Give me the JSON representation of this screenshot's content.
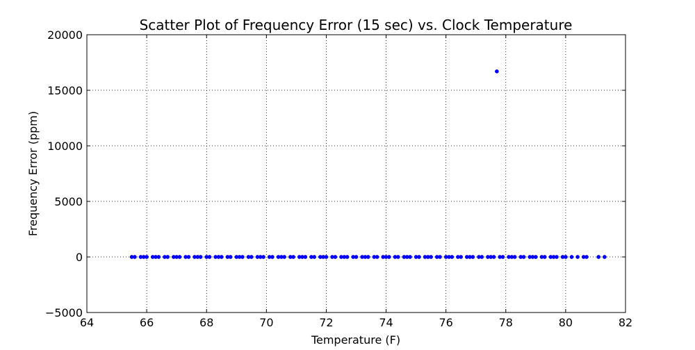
{
  "chart_data": {
    "type": "scatter",
    "title": "Scatter Plot of Frequency Error (15 sec) vs. Clock Temperature",
    "xlabel": "Temperature (F)",
    "ylabel": "Frequency Error (ppm)",
    "xlim": [
      64,
      82
    ],
    "ylim": [
      -5000,
      20000
    ],
    "xticks": [
      64,
      66,
      68,
      70,
      72,
      74,
      76,
      78,
      80,
      82
    ],
    "xtick_labels": [
      "64",
      "66",
      "68",
      "70",
      "72",
      "74",
      "76",
      "78",
      "80",
      "82"
    ],
    "yticks": [
      -5000,
      0,
      5000,
      10000,
      15000,
      20000
    ],
    "ytick_labels": [
      "−5000",
      "0",
      "5000",
      "10000",
      "15000",
      "20000"
    ],
    "grid": true,
    "marker_color": "#0000ff",
    "series": [
      {
        "points": [
          [
            65.5,
            0
          ],
          [
            65.6,
            0
          ],
          [
            65.8,
            0
          ],
          [
            65.9,
            0
          ],
          [
            66.0,
            0
          ],
          [
            66.2,
            0
          ],
          [
            66.3,
            0
          ],
          [
            66.4,
            0
          ],
          [
            66.6,
            0
          ],
          [
            66.7,
            0
          ],
          [
            66.9,
            0
          ],
          [
            67.0,
            0
          ],
          [
            67.1,
            0
          ],
          [
            67.3,
            0
          ],
          [
            67.4,
            0
          ],
          [
            67.6,
            0
          ],
          [
            67.7,
            0
          ],
          [
            67.8,
            0
          ],
          [
            68.0,
            0
          ],
          [
            68.1,
            0
          ],
          [
            68.3,
            0
          ],
          [
            68.4,
            0
          ],
          [
            68.5,
            0
          ],
          [
            68.7,
            0
          ],
          [
            68.8,
            0
          ],
          [
            69.0,
            0
          ],
          [
            69.1,
            0
          ],
          [
            69.2,
            0
          ],
          [
            69.4,
            0
          ],
          [
            69.5,
            0
          ],
          [
            69.7,
            0
          ],
          [
            69.8,
            0
          ],
          [
            69.9,
            0
          ],
          [
            70.1,
            0
          ],
          [
            70.2,
            0
          ],
          [
            70.4,
            0
          ],
          [
            70.5,
            0
          ],
          [
            70.6,
            0
          ],
          [
            70.8,
            0
          ],
          [
            70.9,
            0
          ],
          [
            71.1,
            0
          ],
          [
            71.2,
            0
          ],
          [
            71.3,
            0
          ],
          [
            71.5,
            0
          ],
          [
            71.6,
            0
          ],
          [
            71.8,
            0
          ],
          [
            71.9,
            0
          ],
          [
            72.0,
            0
          ],
          [
            72.2,
            0
          ],
          [
            72.3,
            0
          ],
          [
            72.5,
            0
          ],
          [
            72.6,
            0
          ],
          [
            72.7,
            0
          ],
          [
            72.9,
            0
          ],
          [
            73.0,
            0
          ],
          [
            73.2,
            0
          ],
          [
            73.3,
            0
          ],
          [
            73.4,
            0
          ],
          [
            73.6,
            0
          ],
          [
            73.7,
            0
          ],
          [
            73.9,
            0
          ],
          [
            74.0,
            0
          ],
          [
            74.1,
            0
          ],
          [
            74.3,
            0
          ],
          [
            74.4,
            0
          ],
          [
            74.6,
            0
          ],
          [
            74.7,
            0
          ],
          [
            74.8,
            0
          ],
          [
            75.0,
            0
          ],
          [
            75.1,
            0
          ],
          [
            75.3,
            0
          ],
          [
            75.4,
            0
          ],
          [
            75.5,
            0
          ],
          [
            75.7,
            0
          ],
          [
            75.8,
            0
          ],
          [
            76.0,
            0
          ],
          [
            76.1,
            0
          ],
          [
            76.2,
            0
          ],
          [
            76.4,
            0
          ],
          [
            76.5,
            0
          ],
          [
            76.7,
            0
          ],
          [
            76.8,
            0
          ],
          [
            76.9,
            0
          ],
          [
            77.1,
            0
          ],
          [
            77.2,
            0
          ],
          [
            77.4,
            0
          ],
          [
            77.5,
            0
          ],
          [
            77.6,
            0
          ],
          [
            77.8,
            0
          ],
          [
            77.9,
            0
          ],
          [
            78.1,
            0
          ],
          [
            78.2,
            0
          ],
          [
            78.3,
            0
          ],
          [
            78.5,
            0
          ],
          [
            78.6,
            0
          ],
          [
            78.8,
            0
          ],
          [
            78.9,
            0
          ],
          [
            79.0,
            0
          ],
          [
            79.2,
            0
          ],
          [
            79.3,
            0
          ],
          [
            79.5,
            0
          ],
          [
            79.6,
            0
          ],
          [
            79.7,
            0
          ],
          [
            79.9,
            0
          ],
          [
            80.0,
            0
          ],
          [
            80.2,
            0
          ],
          [
            80.4,
            0
          ],
          [
            80.6,
            0
          ],
          [
            80.7,
            0
          ],
          [
            81.1,
            0
          ],
          [
            81.3,
            0
          ],
          [
            77.7,
            16700
          ]
        ]
      }
    ]
  }
}
